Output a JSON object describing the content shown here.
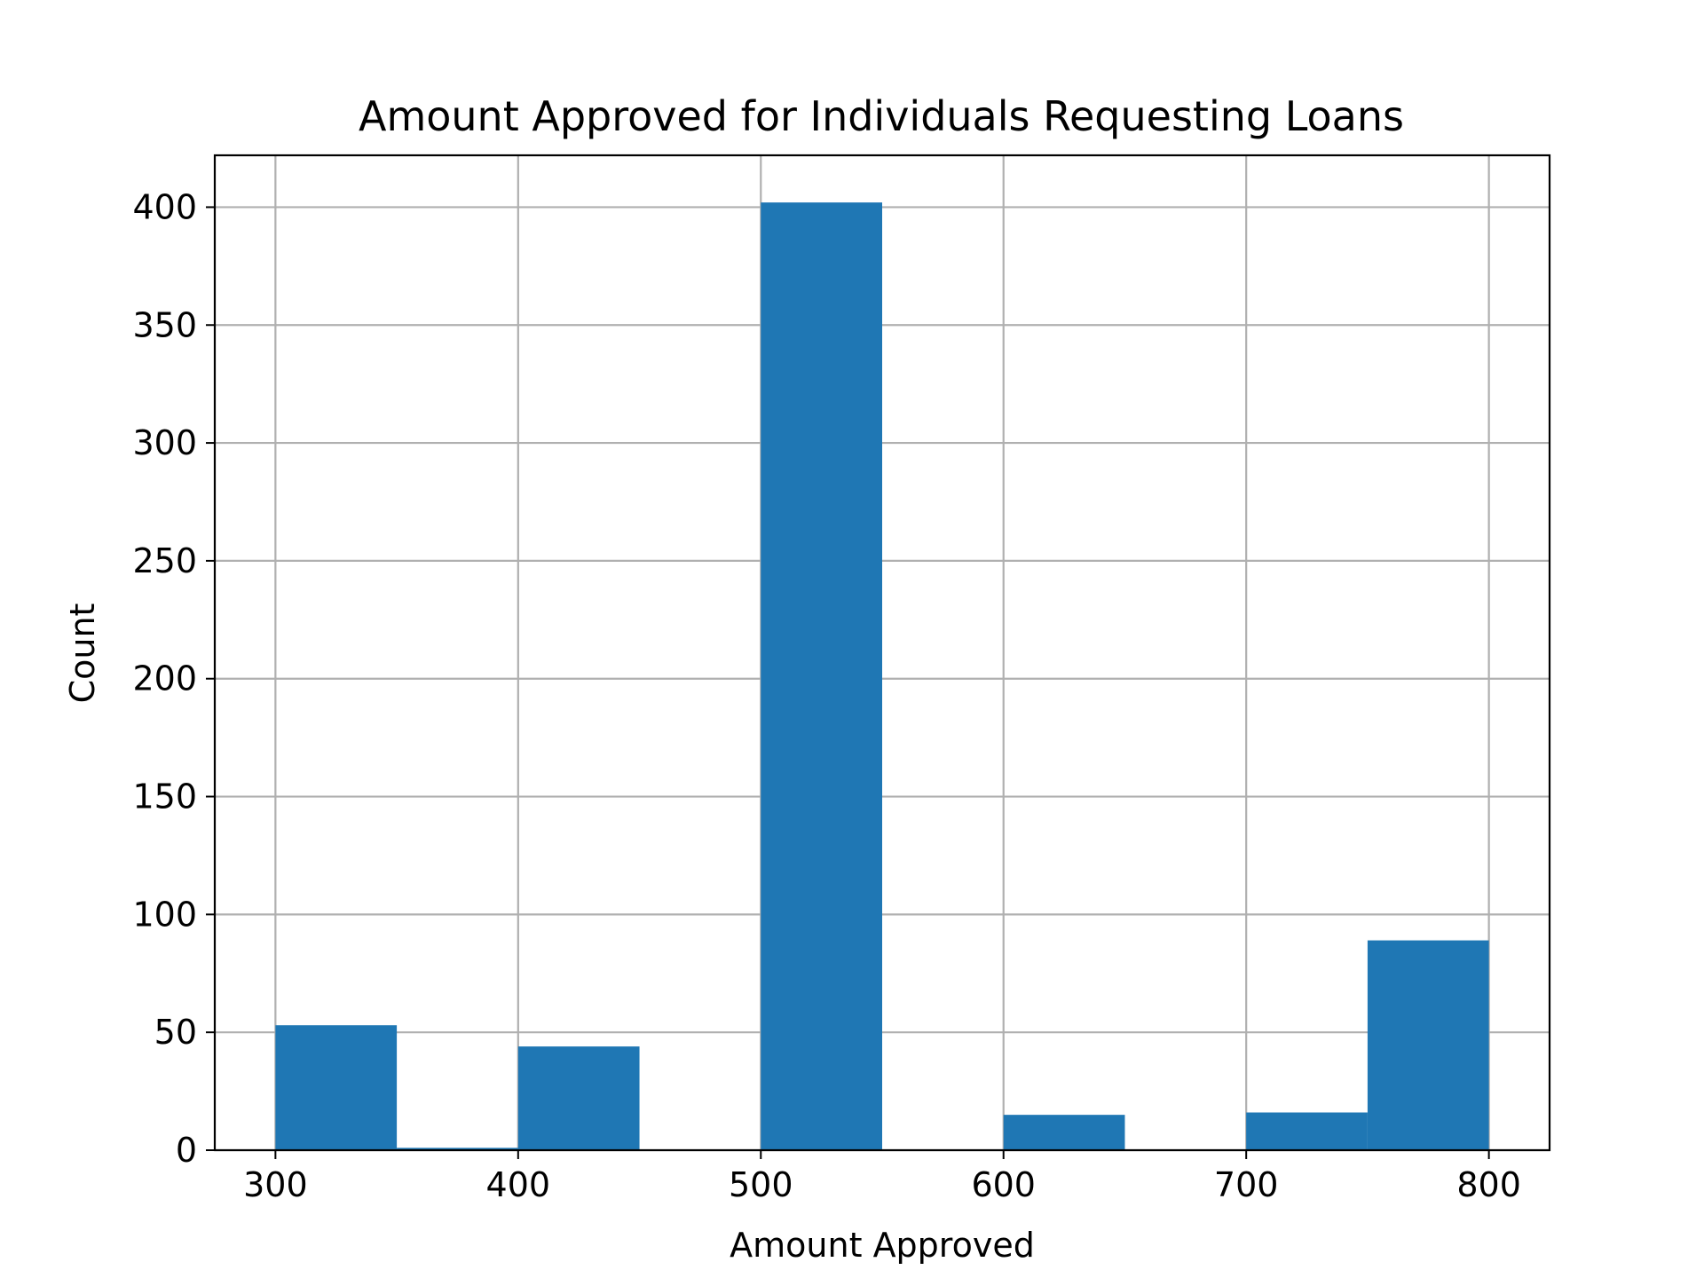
{
  "chart_data": {
    "type": "bar",
    "title": "Amount Approved for Individuals Requesting Loans",
    "xlabel": "Amount Approved",
    "ylabel": "Count",
    "bins": [
      {
        "start": 300,
        "end": 350,
        "count": 53
      },
      {
        "start": 350,
        "end": 400,
        "count": 1
      },
      {
        "start": 400,
        "end": 450,
        "count": 44
      },
      {
        "start": 450,
        "end": 500,
        "count": 0
      },
      {
        "start": 500,
        "end": 550,
        "count": 402
      },
      {
        "start": 550,
        "end": 600,
        "count": 0
      },
      {
        "start": 600,
        "end": 650,
        "count": 15
      },
      {
        "start": 650,
        "end": 700,
        "count": 0
      },
      {
        "start": 700,
        "end": 750,
        "count": 16
      },
      {
        "start": 750,
        "end": 800,
        "count": 89
      }
    ],
    "xlim": [
      275,
      825
    ],
    "ylim": [
      0,
      422
    ],
    "xticks": [
      300,
      400,
      500,
      600,
      700,
      800
    ],
    "yticks": [
      0,
      50,
      100,
      150,
      200,
      250,
      300,
      350,
      400
    ],
    "grid": true,
    "legend": "none",
    "bar_color": "#1f77b4"
  }
}
